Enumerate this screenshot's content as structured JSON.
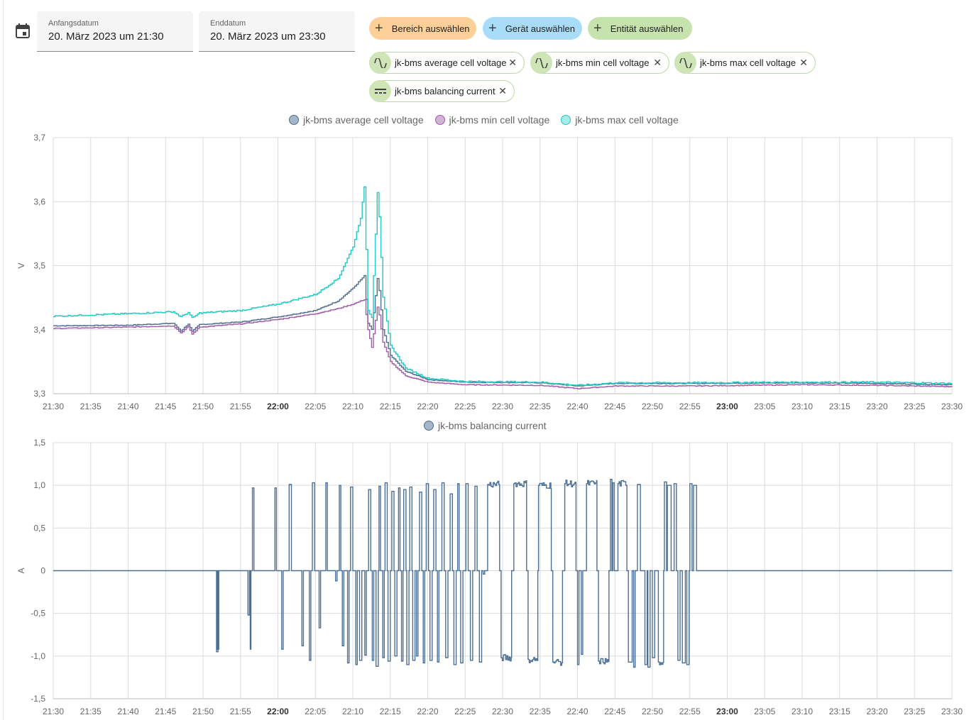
{
  "date_range": {
    "start_label": "Anfangsdatum",
    "start_value": "20. März 2023 um 21:30",
    "end_label": "Enddatum",
    "end_value": "20. März 2023 um 23:30"
  },
  "target_pickers": [
    {
      "label": "Bereich auswählen",
      "color": "#fdd09a"
    },
    {
      "label": "Gerät auswählen",
      "color": "#a8dcf9"
    },
    {
      "label": "Entität auswählen",
      "color": "#c6e3ae"
    }
  ],
  "entity_chips": [
    {
      "label": "jk-bms average cell voltage",
      "icon": "sine-wave-icon"
    },
    {
      "label": "jk-bms min cell voltage",
      "icon": "sine-wave-icon"
    },
    {
      "label": "jk-bms max cell voltage",
      "icon": "sine-wave-icon"
    },
    {
      "label": "jk-bms balancing current",
      "icon": "current-dc-icon"
    }
  ],
  "chart_data": [
    {
      "type": "line",
      "ylabel": "V",
      "ylim": [
        3.3,
        3.7
      ],
      "yticks": [
        "3,7",
        "3,6",
        "3,5",
        "3,4",
        "3,3"
      ],
      "xticks": [
        "21:30",
        "21:35",
        "21:40",
        "21:45",
        "21:50",
        "21:55",
        "22:00",
        "22:05",
        "22:10",
        "22:15",
        "22:20",
        "22:25",
        "22:30",
        "22:35",
        "22:40",
        "22:45",
        "22:50",
        "22:55",
        "23:00",
        "23:05",
        "23:10",
        "23:15",
        "23:20",
        "23:25",
        "23:30"
      ],
      "xticks_bold": [
        "22:00",
        "23:00"
      ],
      "grid": true,
      "legend_position": "top-center",
      "series": [
        {
          "name": "jk-bms average cell voltage",
          "color": "#4f6d8c",
          "fill": "#a5b6c8",
          "points": [
            [
              "21:30",
              3.406
            ],
            [
              "21:40",
              3.407
            ],
            [
              "21:46",
              3.41
            ],
            [
              "21:47",
              3.398
            ],
            [
              "21:48",
              3.409
            ],
            [
              "21:48.5",
              3.397
            ],
            [
              "21:49.5",
              3.408
            ],
            [
              "21:55",
              3.412
            ],
            [
              "22:00",
              3.42
            ],
            [
              "22:05",
              3.43
            ],
            [
              "22:08",
              3.445
            ],
            [
              "22:10",
              3.465
            ],
            [
              "22:11.5",
              3.484
            ],
            [
              "22:12",
              3.41
            ],
            [
              "22:12.5",
              3.4
            ],
            [
              "22:13.3",
              3.485
            ],
            [
              "22:14",
              3.4
            ],
            [
              "22:15",
              3.36
            ],
            [
              "22:17",
              3.335
            ],
            [
              "22:20",
              3.322
            ],
            [
              "22:25",
              3.318
            ],
            [
              "22:35",
              3.317
            ],
            [
              "22:38",
              3.314
            ],
            [
              "22:40",
              3.312
            ],
            [
              "22:45",
              3.316
            ],
            [
              "22:55",
              3.316
            ],
            [
              "23:10",
              3.317
            ],
            [
              "23:20",
              3.316
            ],
            [
              "23:30",
              3.314
            ]
          ]
        },
        {
          "name": "jk-bms min cell voltage",
          "color": "#a15ca8",
          "fill": "#d3b3d8",
          "points": [
            [
              "21:30",
              3.402
            ],
            [
              "21:40",
              3.404
            ],
            [
              "21:46",
              3.406
            ],
            [
              "21:47",
              3.395
            ],
            [
              "21:48",
              3.405
            ],
            [
              "21:48.5",
              3.393
            ],
            [
              "21:49.5",
              3.404
            ],
            [
              "21:55",
              3.409
            ],
            [
              "22:00",
              3.416
            ],
            [
              "22:05",
              3.425
            ],
            [
              "22:08",
              3.433
            ],
            [
              "22:10",
              3.44
            ],
            [
              "22:11.5",
              3.447
            ],
            [
              "22:12",
              3.4
            ],
            [
              "22:12.5",
              3.372
            ],
            [
              "22:13.3",
              3.44
            ],
            [
              "22:14",
              3.38
            ],
            [
              "22:15",
              3.35
            ],
            [
              "22:17",
              3.328
            ],
            [
              "22:20",
              3.318
            ],
            [
              "22:25",
              3.314
            ],
            [
              "22:35",
              3.313
            ],
            [
              "22:38",
              3.31
            ],
            [
              "22:40",
              3.308
            ],
            [
              "22:45",
              3.312
            ],
            [
              "22:55",
              3.312
            ],
            [
              "23:10",
              3.314
            ],
            [
              "23:20",
              3.313
            ],
            [
              "23:30",
              3.311
            ]
          ]
        },
        {
          "name": "jk-bms max cell voltage",
          "color": "#1fc9c4",
          "fill": "#a6ece9",
          "points": [
            [
              "21:30",
              3.421
            ],
            [
              "21:40",
              3.425
            ],
            [
              "21:46",
              3.428
            ],
            [
              "21:47",
              3.42
            ],
            [
              "21:48",
              3.427
            ],
            [
              "21:48.5",
              3.418
            ],
            [
              "21:49.5",
              3.426
            ],
            [
              "21:55",
              3.43
            ],
            [
              "22:00",
              3.44
            ],
            [
              "22:05",
              3.455
            ],
            [
              "22:08",
              3.48
            ],
            [
              "22:10",
              3.53
            ],
            [
              "22:11",
              3.575
            ],
            [
              "22:11.5",
              3.622
            ],
            [
              "22:12",
              3.43
            ],
            [
              "22:12.5",
              3.42
            ],
            [
              "22:13.3",
              3.628
            ],
            [
              "22:14",
              3.45
            ],
            [
              "22:15",
              3.375
            ],
            [
              "22:17",
              3.34
            ],
            [
              "22:20",
              3.324
            ],
            [
              "22:25",
              3.319
            ],
            [
              "22:35",
              3.318
            ],
            [
              "22:38",
              3.315
            ],
            [
              "22:40",
              3.313
            ],
            [
              "22:45",
              3.317
            ],
            [
              "22:55",
              3.317
            ],
            [
              "23:10",
              3.318
            ],
            [
              "23:20",
              3.318
            ],
            [
              "23:30",
              3.316
            ]
          ]
        }
      ]
    },
    {
      "type": "line",
      "ylabel": "A",
      "ylim": [
        -1.5,
        1.5
      ],
      "yticks": [
        "1,5",
        "1,0",
        "0,5",
        "0",
        "-0,5",
        "-1,0",
        "-1,5"
      ],
      "xticks": [
        "21:30",
        "21:35",
        "21:40",
        "21:45",
        "21:50",
        "21:55",
        "22:00",
        "22:05",
        "22:10",
        "22:15",
        "22:20",
        "22:25",
        "22:30",
        "22:35",
        "22:40",
        "22:45",
        "22:50",
        "22:55",
        "23:00",
        "23:05",
        "23:10",
        "23:15",
        "23:20",
        "23:25",
        "23:30"
      ],
      "xticks_bold": [
        "22:00",
        "23:00"
      ],
      "grid": true,
      "legend_position": "top-center",
      "series": [
        {
          "name": "jk-bms balancing current",
          "color": "#4b6f94",
          "fill": "#a5b6c8",
          "pulses": [
            [
              21.8,
              22.0,
              -0.95
            ],
            [
              21.9,
              22.1,
              -0.92
            ],
            [
              26.0,
              26.2,
              -0.52
            ],
            [
              26.3,
              26.4,
              -0.92
            ],
            [
              26.6,
              26.8,
              0.97
            ],
            [
              29.6,
              29.8,
              0.97
            ],
            [
              30.5,
              30.7,
              -0.92
            ],
            [
              31.5,
              31.8,
              1.01
            ],
            [
              33.2,
              33.4,
              -0.88
            ],
            [
              34.2,
              34.4,
              -1.05
            ],
            [
              34.6,
              34.9,
              1.03
            ],
            [
              35.5,
              35.7,
              -0.67
            ],
            [
              36.4,
              36.6,
              1.03
            ],
            [
              37.7,
              37.9,
              -0.12
            ],
            [
              38.2,
              38.4,
              1.0
            ],
            [
              38.6,
              38.8,
              -0.88
            ],
            [
              39.3,
              39.5,
              -1.08
            ],
            [
              39.7,
              40.0,
              0.98
            ],
            [
              40.4,
              40.6,
              -1.1
            ],
            [
              40.9,
              41.2,
              -1.05
            ],
            [
              41.6,
              41.8,
              -0.99
            ],
            [
              42.1,
              42.4,
              0.95
            ],
            [
              42.6,
              42.8,
              -1.05
            ],
            [
              43.1,
              43.4,
              -1.12
            ],
            [
              43.5,
              43.7,
              0.99
            ],
            [
              44.0,
              44.2,
              -1.02
            ],
            [
              44.3,
              44.6,
              1.03
            ],
            [
              44.7,
              45.0,
              -1.06
            ],
            [
              45.2,
              45.5,
              0.93
            ],
            [
              45.6,
              45.9,
              -1.0
            ],
            [
              46.1,
              46.3,
              0.97
            ],
            [
              46.5,
              46.7,
              -1.06
            ],
            [
              46.8,
              47.1,
              0.95
            ],
            [
              47.2,
              47.5,
              -1.1
            ],
            [
              47.6,
              47.9,
              0.98
            ],
            [
              48.0,
              48.3,
              -1.05
            ],
            [
              48.5,
              48.7,
              -1.0
            ],
            [
              48.9,
              49.2,
              0.92
            ],
            [
              49.4,
              49.6,
              -1.08
            ],
            [
              49.8,
              50.1,
              1.02
            ],
            [
              50.3,
              50.6,
              -1.05
            ],
            [
              50.8,
              51.1,
              0.95
            ],
            [
              51.3,
              51.5,
              -1.07
            ],
            [
              51.9,
              52.2,
              1.03
            ],
            [
              52.4,
              52.7,
              -1.02
            ],
            [
              53.0,
              53.3,
              0.9
            ],
            [
              53.5,
              53.8,
              -1.1
            ],
            [
              54.0,
              54.2,
              1.02
            ],
            [
              54.4,
              54.7,
              -1.08
            ],
            [
              55.1,
              55.4,
              1.02
            ],
            [
              55.7,
              56.0,
              -1.05
            ],
            [
              56.3,
              56.6,
              0.99
            ],
            [
              56.9,
              57.2,
              -1.07
            ],
            [
              57.4,
              57.6,
              -0.04
            ],
            [
              58.0,
              59.6,
              1.01
            ],
            [
              59.8,
              61.2,
              -1.02
            ],
            [
              61.5,
              63.2,
              1.02
            ],
            [
              63.4,
              64.7,
              -1.04
            ],
            [
              64.8,
              66.5,
              1.0
            ],
            [
              66.7,
              68.0,
              -1.07
            ],
            [
              68.3,
              69.8,
              1.02
            ],
            [
              70.0,
              70.2,
              -1.1
            ],
            [
              70.5,
              70.7,
              -0.98
            ],
            [
              71.2,
              72.6,
              1.02
            ],
            [
              72.8,
              74.2,
              -1.06
            ],
            [
              74.4,
              74.6,
              1.07
            ],
            [
              74.7,
              74.9,
              1.03
            ],
            [
              75.4,
              76.6,
              1.02
            ],
            [
              76.8,
              77.3,
              -1.07
            ],
            [
              77.5,
              77.7,
              -1.13
            ],
            [
              78.0,
              78.4,
              1.01
            ],
            [
              79.0,
              79.3,
              -1.1
            ],
            [
              79.4,
              79.7,
              -1.13
            ],
            [
              80.0,
              80.3,
              -1.02
            ],
            [
              80.8,
              81.5,
              -1.07
            ],
            [
              81.6,
              81.9,
              1.04
            ],
            [
              82.0,
              82.5,
              1.0
            ],
            [
              82.9,
              83.2,
              1.02
            ],
            [
              83.4,
              83.7,
              -1.05
            ],
            [
              84.0,
              84.4,
              -1.08
            ],
            [
              84.6,
              84.9,
              -1.1
            ],
            [
              85.0,
              85.3,
              1.02
            ],
            [
              85.5,
              85.9,
              1.0
            ]
          ],
          "pulse_units": "minutes since 21:30 (start, end, amperes)"
        }
      ]
    }
  ]
}
